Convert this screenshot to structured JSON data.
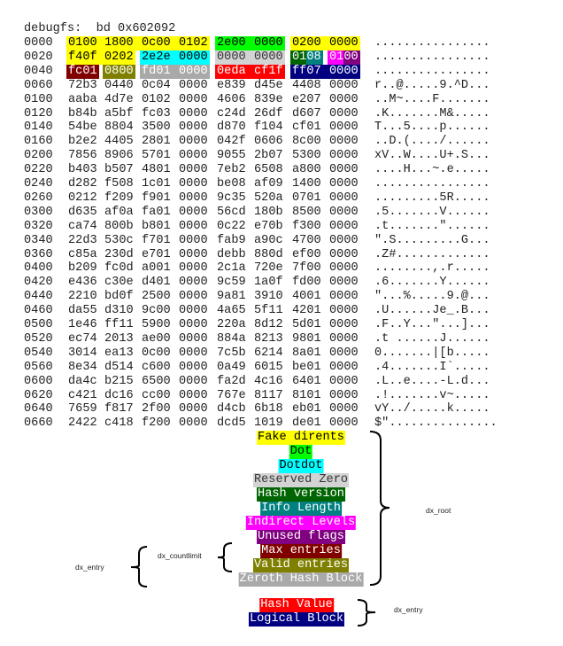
{
  "command": "debugfs:  bd 0x602092",
  "fields": {
    "fake_dirents": {
      "label": "Fake dirents",
      "bg": "#ffff00",
      "fg": "#000000"
    },
    "dot": {
      "label": "Dot",
      "bg": "#00ff00",
      "fg": "#000000"
    },
    "dotdot": {
      "label": "Dotdot",
      "bg": "#00ffff",
      "fg": "#000000"
    },
    "reserved_zero": {
      "label": "Reserved Zero",
      "bg": "#d3d3d3",
      "fg": "#333333"
    },
    "hash_version": {
      "label": "Hash version",
      "bg": "#006400",
      "fg": "#ffffff"
    },
    "info_length": {
      "label": "Info Length",
      "bg": "#008080",
      "fg": "#ffffff"
    },
    "indirect_levels": {
      "label": "Indirect Levels",
      "bg": "#ff00ff",
      "fg": "#ffffff"
    },
    "unused_flags": {
      "label": "Unused flags",
      "bg": "#800080",
      "fg": "#ffffff"
    },
    "max_entries": {
      "label": "Max entries",
      "bg": "#800000",
      "fg": "#ffffff"
    },
    "valid_entries": {
      "label": "Valid entries",
      "bg": "#808000",
      "fg": "#ffffff"
    },
    "zeroth_hash_block": {
      "label": "Zeroth Hash Block",
      "bg": "#a9a9a9",
      "fg": "#ffffff"
    },
    "hash_value": {
      "label": "Hash Value",
      "bg": "#ff0000",
      "fg": "#ffffff"
    },
    "logical_block": {
      "label": "Logical Block",
      "bg": "#000080",
      "fg": "#ffffff"
    }
  },
  "legend_order": [
    "fake_dirents",
    "dot",
    "dotdot",
    "reserved_zero",
    "hash_version",
    "info_length",
    "indirect_levels",
    "unused_flags",
    "max_entries",
    "valid_entries",
    "zeroth_hash_block"
  ],
  "entry_legend_order": [
    "hash_value",
    "logical_block"
  ],
  "annotations": {
    "dx_root": "dx_root",
    "dx_countlimit": "dx_countlimit",
    "dx_entry_left": "dx_entry",
    "dx_entry_right": "dx_entry"
  },
  "rows": [
    {
      "offset": "0000",
      "words": [
        "0100",
        "1800",
        "0c00",
        "0102",
        "2e00",
        "0000",
        "0200",
        "0000"
      ],
      "ascii": "................"
    },
    {
      "offset": "0020",
      "words": [
        "f40f",
        "0202",
        "2e2e",
        "0000",
        "0000",
        "0000",
        "0108",
        "0100"
      ],
      "ascii": "................"
    },
    {
      "offset": "0040",
      "words": [
        "fc01",
        "0800",
        "fd01",
        "0000",
        "0eda",
        "cf1f",
        "ff07",
        "0000"
      ],
      "ascii": "................"
    },
    {
      "offset": "0060",
      "words": [
        "72b3",
        "0440",
        "0c04",
        "0000",
        "e839",
        "d45e",
        "4408",
        "0000"
      ],
      "ascii": "r..@.....9.^D..."
    },
    {
      "offset": "0100",
      "words": [
        "aaba",
        "4d7e",
        "0102",
        "0000",
        "4606",
        "839e",
        "e207",
        "0000"
      ],
      "ascii": "..M~....F......."
    },
    {
      "offset": "0120",
      "words": [
        "b84b",
        "a5bf",
        "fc03",
        "0000",
        "c24d",
        "26df",
        "d607",
        "0000"
      ],
      "ascii": ".K.......M&....."
    },
    {
      "offset": "0140",
      "words": [
        "54be",
        "8804",
        "3500",
        "0000",
        "d870",
        "f104",
        "cf01",
        "0000"
      ],
      "ascii": "T...5....p......"
    },
    {
      "offset": "0160",
      "words": [
        "b2e2",
        "4405",
        "2801",
        "0000",
        "042f",
        "0606",
        "8c00",
        "0000"
      ],
      "ascii": "..D.(..../......"
    },
    {
      "offset": "0200",
      "words": [
        "7856",
        "8906",
        "5701",
        "0000",
        "9055",
        "2b07",
        "5300",
        "0000"
      ],
      "ascii": "xV..W....U+.S..."
    },
    {
      "offset": "0220",
      "words": [
        "b403",
        "b507",
        "4801",
        "0000",
        "7eb2",
        "6508",
        "a800",
        "0000"
      ],
      "ascii": "....H...~.e....."
    },
    {
      "offset": "0240",
      "words": [
        "d282",
        "f508",
        "1c01",
        "0000",
        "be08",
        "af09",
        "1400",
        "0000"
      ],
      "ascii": "................"
    },
    {
      "offset": "0260",
      "words": [
        "0212",
        "f209",
        "f901",
        "0000",
        "9c35",
        "520a",
        "0701",
        "0000"
      ],
      "ascii": ".........5R....."
    },
    {
      "offset": "0300",
      "words": [
        "d635",
        "af0a",
        "fa01",
        "0000",
        "56cd",
        "180b",
        "8500",
        "0000"
      ],
      "ascii": ".5.......V......"
    },
    {
      "offset": "0320",
      "words": [
        "ca74",
        "800b",
        "b801",
        "0000",
        "0c22",
        "e70b",
        "f300",
        "0000"
      ],
      "ascii": ".t.......\"......"
    },
    {
      "offset": "0340",
      "words": [
        "22d3",
        "530c",
        "f701",
        "0000",
        "fab9",
        "a90c",
        "4700",
        "0000"
      ],
      "ascii": "\".S.........G..."
    },
    {
      "offset": "0360",
      "words": [
        "c85a",
        "230d",
        "e701",
        "0000",
        "debb",
        "880d",
        "ef00",
        "0000"
      ],
      "ascii": ".Z#............."
    },
    {
      "offset": "0400",
      "words": [
        "b209",
        "fc0d",
        "a001",
        "0000",
        "2c1a",
        "720e",
        "7f00",
        "0000"
      ],
      "ascii": "........,.r....."
    },
    {
      "offset": "0420",
      "words": [
        "e436",
        "c30e",
        "d401",
        "0000",
        "9c59",
        "1a0f",
        "fd00",
        "0000"
      ],
      "ascii": ".6.......Y......"
    },
    {
      "offset": "0440",
      "words": [
        "2210",
        "bd0f",
        "2500",
        "0000",
        "9a81",
        "3910",
        "4001",
        "0000"
      ],
      "ascii": "\"...%.....9.@..."
    },
    {
      "offset": "0460",
      "words": [
        "da55",
        "d310",
        "9c00",
        "0000",
        "4a65",
        "5f11",
        "4201",
        "0000"
      ],
      "ascii": ".U......Je_.B..."
    },
    {
      "offset": "0500",
      "words": [
        "1e46",
        "ff11",
        "5900",
        "0000",
        "220a",
        "8d12",
        "5d01",
        "0000"
      ],
      "ascii": ".F..Y...\"...]..."
    },
    {
      "offset": "0520",
      "words": [
        "ec74",
        "2013",
        "ae00",
        "0000",
        "884a",
        "8213",
        "9801",
        "0000"
      ],
      "ascii": ".t ......J......"
    },
    {
      "offset": "0540",
      "words": [
        "3014",
        "ea13",
        "0c00",
        "0000",
        "7c5b",
        "6214",
        "8a01",
        "0000"
      ],
      "ascii": "0.......|[b....."
    },
    {
      "offset": "0560",
      "words": [
        "8e34",
        "d514",
        "c600",
        "0000",
        "0a49",
        "6015",
        "be01",
        "0000"
      ],
      "ascii": ".4.......I`....."
    },
    {
      "offset": "0600",
      "words": [
        "da4c",
        "b215",
        "6500",
        "0000",
        "fa2d",
        "4c16",
        "6401",
        "0000"
      ],
      "ascii": ".L..e....-L.d..."
    },
    {
      "offset": "0620",
      "words": [
        "c421",
        "dc16",
        "cc00",
        "0000",
        "767e",
        "8117",
        "8101",
        "0000"
      ],
      "ascii": ".!.......v~....."
    },
    {
      "offset": "0640",
      "words": [
        "7659",
        "f817",
        "2f00",
        "0000",
        "d4cb",
        "6b18",
        "eb01",
        "0000"
      ],
      "ascii": "vY../.....k....."
    },
    {
      "offset": "0660",
      "words": [
        "2422",
        "c418",
        "f200",
        "0000",
        "dcd5",
        "1019",
        "de01",
        "0000"
      ],
      "ascii": "$\"..............."
    }
  ],
  "highlights": [
    {
      "row": 0,
      "start": [
        0,
        0
      ],
      "end": [
        3,
        4
      ],
      "field": "fake_dirents"
    },
    {
      "row": 0,
      "start": [
        4,
        0
      ],
      "end": [
        5,
        4
      ],
      "field": "dot"
    },
    {
      "row": 0,
      "start": [
        6,
        0
      ],
      "end": [
        7,
        4
      ],
      "field": "fake_dirents"
    },
    {
      "row": 1,
      "start": [
        0,
        0
      ],
      "end": [
        1,
        4
      ],
      "field": "fake_dirents"
    },
    {
      "row": 1,
      "start": [
        2,
        0
      ],
      "end": [
        3,
        4
      ],
      "field": "dotdot"
    },
    {
      "row": 1,
      "start": [
        4,
        0
      ],
      "end": [
        5,
        4
      ],
      "field": "reserved_zero"
    },
    {
      "row": 1,
      "start": [
        6,
        0
      ],
      "end": [
        6,
        2
      ],
      "field": "hash_version"
    },
    {
      "row": 1,
      "start": [
        6,
        2
      ],
      "end": [
        6,
        4
      ],
      "field": "info_length"
    },
    {
      "row": 1,
      "start": [
        7,
        0
      ],
      "end": [
        7,
        2
      ],
      "field": "indirect_levels"
    },
    {
      "row": 1,
      "start": [
        7,
        2
      ],
      "end": [
        7,
        4
      ],
      "field": "unused_flags"
    },
    {
      "row": 2,
      "start": [
        0,
        0
      ],
      "end": [
        0,
        4
      ],
      "field": "max_entries"
    },
    {
      "row": 2,
      "start": [
        1,
        0
      ],
      "end": [
        1,
        4
      ],
      "field": "valid_entries"
    },
    {
      "row": 2,
      "start": [
        2,
        0
      ],
      "end": [
        3,
        4
      ],
      "field": "zeroth_hash_block"
    },
    {
      "row": 2,
      "start": [
        4,
        0
      ],
      "end": [
        5,
        4
      ],
      "field": "hash_value"
    },
    {
      "row": 2,
      "start": [
        6,
        0
      ],
      "end": [
        7,
        4
      ],
      "field": "logical_block"
    }
  ]
}
